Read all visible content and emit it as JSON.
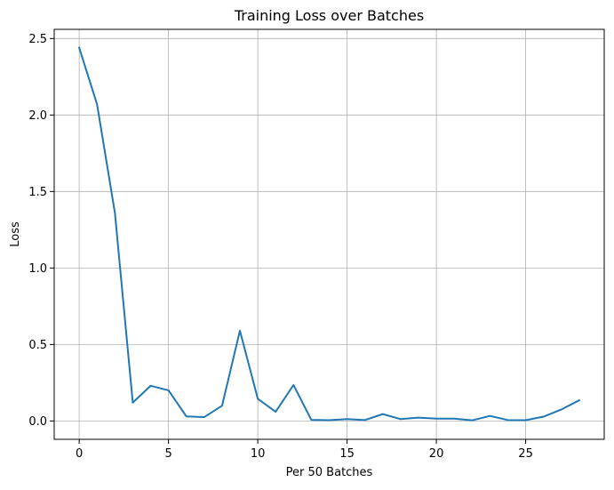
{
  "chart_data": {
    "type": "line",
    "title": "Training Loss over Batches",
    "xlabel": "Per 50 Batches",
    "ylabel": "Loss",
    "xlim": [
      -1.4,
      29.4
    ],
    "ylim": [
      -0.12,
      2.56
    ],
    "xticks": [
      0,
      5,
      10,
      15,
      20,
      25
    ],
    "xtick_labels": [
      "0",
      "5",
      "10",
      "15",
      "20",
      "25"
    ],
    "yticks": [
      0.0,
      0.5,
      1.0,
      1.5,
      2.0,
      2.5
    ],
    "ytick_labels": [
      "0.0",
      "0.5",
      "1.0",
      "1.5",
      "2.0",
      "2.5"
    ],
    "grid": true,
    "series": [
      {
        "color": "#1f77b4",
        "x": [
          0,
          1,
          2,
          3,
          4,
          5,
          6,
          7,
          8,
          9,
          10,
          11,
          12,
          13,
          14,
          15,
          16,
          17,
          18,
          19,
          20,
          21,
          22,
          23,
          24,
          25,
          26,
          27,
          28
        ],
        "y": [
          2.44,
          2.07,
          1.36,
          0.12,
          0.23,
          0.2,
          0.03,
          0.025,
          0.1,
          0.59,
          0.145,
          0.06,
          0.235,
          0.007,
          0.005,
          0.012,
          0.006,
          0.045,
          0.012,
          0.022,
          0.015,
          0.015,
          0.004,
          0.033,
          0.006,
          0.005,
          0.028,
          0.075,
          0.135
        ]
      }
    ]
  }
}
